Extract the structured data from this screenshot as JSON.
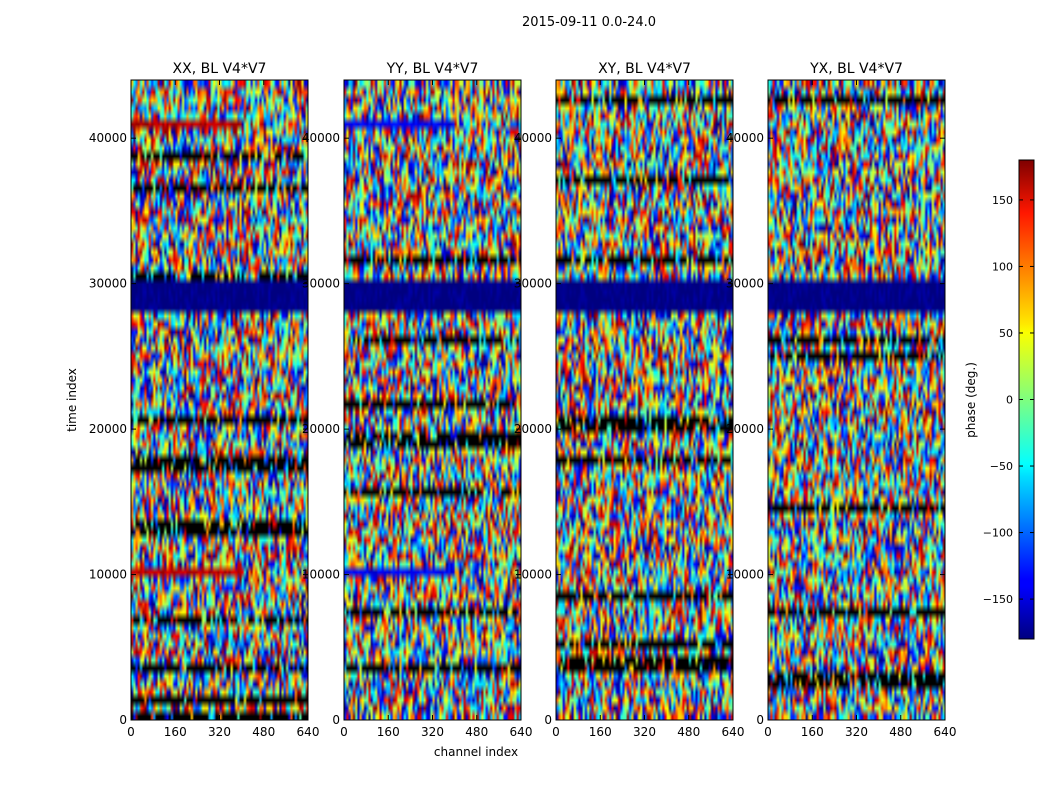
{
  "figure_title": "2015-09-11 0.0-24.0",
  "chart_data": {
    "type": "heatmap",
    "title": "2015-09-11 0.0-24.0",
    "xlabel": "channel index",
    "ylabel": "time index",
    "xlim": [
      0,
      640
    ],
    "ylim": [
      0,
      44000
    ],
    "x_ticks": [
      0,
      160,
      320,
      480,
      640
    ],
    "y_ticks": [
      0,
      10000,
      20000,
      30000,
      40000
    ],
    "y_tick_labels_shown": [
      "0",
      "10000",
      "20000",
      "30000",
      "40000"
    ],
    "panels": [
      {
        "title": "XX, BL V4*V7",
        "polarization": "XX"
      },
      {
        "title": "YY, BL V4*V7",
        "polarization": "YY"
      },
      {
        "title": "XY, BL V4*V7",
        "polarization": "XY"
      },
      {
        "title": "YX, BL V4*V7",
        "polarization": "YX"
      }
    ],
    "colorbar": {
      "label": "phase (deg.)",
      "range": [
        -180,
        180
      ],
      "ticks": [
        -150,
        -100,
        -50,
        0,
        50,
        100,
        150
      ],
      "tick_labels": [
        "−150",
        "−100",
        "−50",
        "0",
        "50",
        "100",
        "150"
      ],
      "colormap": "jet"
    },
    "notable_rows": [
      {
        "time_index_range": [
          28000,
          30000
        ],
        "phase_deg": -180,
        "all_panels": true
      },
      {
        "time_index_range": [
          9800,
          10500
        ],
        "phase_deg": 160,
        "channels": [
          0,
          400
        ],
        "panels": [
          "XX"
        ]
      },
      {
        "time_index_range": [
          9800,
          10500
        ],
        "phase_deg": -140,
        "channels": [
          0,
          400
        ],
        "panels": [
          "YY"
        ]
      },
      {
        "time_index_range": [
          40500,
          41200
        ],
        "phase_deg": 160,
        "channels": [
          0,
          400
        ],
        "panels": [
          "XX"
        ]
      },
      {
        "time_index_range": [
          40500,
          41200
        ],
        "phase_deg": -140,
        "channels": [
          0,
          400
        ],
        "panels": [
          "YY"
        ]
      }
    ]
  }
}
